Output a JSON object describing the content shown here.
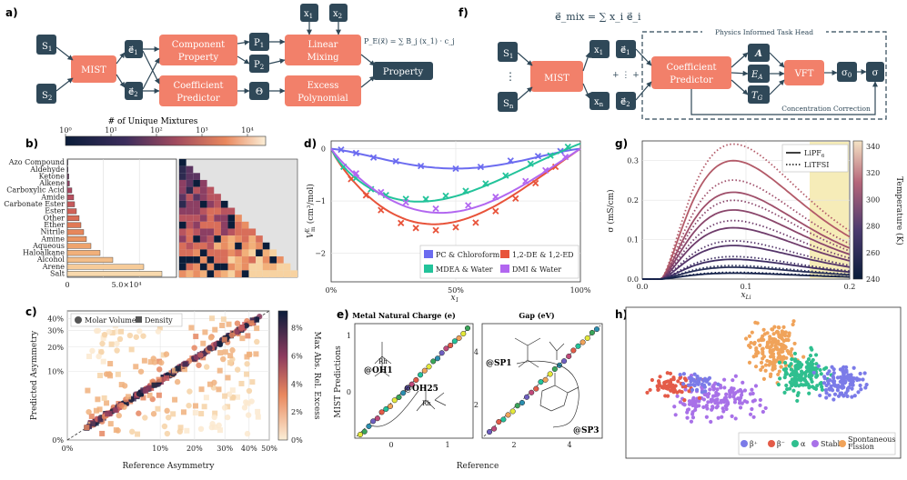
{
  "colors": {
    "navy": "#2f4858",
    "salmon": "#f2806a",
    "series_blue": "#6c6cf0",
    "series_red": "#e8533a",
    "series_green": "#22c39a",
    "series_purple": "#b267f0",
    "beta_plus": "#7b7be8",
    "beta_minus": "#e45b48",
    "alpha": "#2fbf8f",
    "stable": "#a871e8",
    "sf": "#f0a35a"
  },
  "panel_a": {
    "label": "a)",
    "s1": "S",
    "s1_sub": "1",
    "s2": "S",
    "s2_sub": "2",
    "mist": "MIST",
    "e1": "e⃗",
    "e1_sub": "1",
    "e2": "e⃗",
    "e2_sub": "2",
    "component_property": [
      "Component",
      "Property"
    ],
    "coefficient_predictor": [
      "Coefficient",
      "Predictor"
    ],
    "p1": "P",
    "p1_sub": "1",
    "p2": "P",
    "p2_sub": "2",
    "theta": "Θ",
    "x1": "x",
    "x1_sub": "1",
    "x2": "x",
    "x2_sub": "2",
    "linear_mixing": [
      "Linear",
      "Mixing"
    ],
    "excess_polynomial": [
      "Excess",
      "Polynomial"
    ],
    "formula": "P_E(x⃗) = ∑ B_j (x_1) · c_j",
    "property": "Property"
  },
  "panel_b": {
    "label": "b)",
    "colorbar_title": "# of Unique Mixtures",
    "colorbar_ticks": [
      "10⁰",
      "10¹",
      "10²",
      "10³",
      "10⁴"
    ],
    "x_tick_0": "0",
    "x_tick_1": "5.0×10⁴",
    "categories": [
      "Azo Compound",
      "Aldehyde",
      "Ketone",
      "Alkene",
      "Carboxylic Acid",
      "Amide",
      "Carbonate Ester",
      "Ester",
      "Other",
      "Ether",
      "Nitrile",
      "Amine",
      "Aqueous",
      "Haloalkane",
      "Alcohol",
      "Arene",
      "Salt"
    ],
    "counts": [
      300,
      400,
      800,
      1200,
      2500,
      3500,
      4000,
      5000,
      6500,
      7500,
      9000,
      10500,
      13000,
      18000,
      25000,
      42000,
      52000
    ],
    "x_max": 60000
  },
  "panel_c": {
    "label": "c)",
    "xlabel": "Reference Asymmetry",
    "ylabel": "Predicted Asymmetry",
    "x_ticks": [
      "0%",
      "10%",
      "20%",
      "30%",
      "40%",
      "50%"
    ],
    "y_ticks": [
      "0%",
      "10%",
      "20%",
      "30%",
      "40%"
    ],
    "legend_molar": "Molar Volume",
    "legend_density": "Density",
    "colorbar_label": "Max Abs. Rel. Excess",
    "colorbar_ticks": [
      "0%",
      "2%",
      "4%",
      "6%",
      "8%"
    ]
  },
  "panel_d": {
    "label": "d)",
    "xlabel": "x",
    "xlabel_sub": "1",
    "ylabel": "V",
    "ylabel_sup": "E",
    "ylabel_sub": "m",
    "ylabel_unit": "(cm³/mol)",
    "x_ticks": [
      "0%",
      "50%",
      "100%"
    ],
    "y_ticks": [
      "0",
      "−1",
      "−2"
    ],
    "legend": [
      "PC & Chloroform",
      "1,2-DE & 1,2-ED",
      "MDEA & Water",
      "DMI & Water"
    ]
  },
  "panel_e": {
    "label": "e)",
    "title_left": "Metal Natural Charge (e)",
    "title_right": "Gap (eV)",
    "ylabel": "MIST Predictions",
    "xlabel": "Reference",
    "left_ticks_x": [
      "0",
      "1"
    ],
    "left_ticks_y": [
      "0",
      "1"
    ],
    "right_ticks_x": [
      "2",
      "4"
    ],
    "right_ticks_y": [
      "2",
      "4"
    ],
    "ann_oh1": "@OH1",
    "ann_oh25": "@OH25",
    "ann_sp1": "@SP1",
    "ann_sp3": "@SP3",
    "rh": "Rh"
  },
  "panel_f": {
    "label": "f)",
    "formula": "e⃗_mix = ∑ x_i e⃗_i",
    "s1": "S",
    "s1_sub": "1",
    "sn": "S",
    "sn_sub": "n",
    "dots": "⋮",
    "mist": "MIST",
    "x1": "x",
    "x1_sub": "1",
    "xn": "x",
    "xn_sub": "n",
    "e1": "e⃗",
    "e1_sub": "1",
    "e2": "e⃗",
    "e2_sub": "2",
    "head_title": "Physics Informed Task Head",
    "coefficient_predictor": [
      "Coefficient",
      "Predictor"
    ],
    "a": "A",
    "ea": "E",
    "ea_sub": "A",
    "tg": "T",
    "tg_sub": "G",
    "vft": "VFT",
    "sigma0": "σ",
    "sigma0_sub": "0",
    "sigma": "σ",
    "concentration_correction": "Concentration Correction"
  },
  "panel_g": {
    "label": "g)",
    "xlabel": "x",
    "xlabel_sub": "Li",
    "ylabel": "σ (mS/cm)",
    "x_ticks": [
      "0.0",
      "0.1",
      "0.2"
    ],
    "y_ticks": [
      "0.0",
      "0.1",
      "0.2",
      "0.3"
    ],
    "legend_solid": "LiPF",
    "legend_solid_sub": "6",
    "legend_dotted": "LiTFSI",
    "colorbar_label": "Temperature (K)",
    "colorbar_ticks": [
      "240",
      "260",
      "280",
      "300",
      "320",
      "340"
    ]
  },
  "panel_h": {
    "label": "h)",
    "legend": [
      "β⁺",
      "β⁻",
      "α",
      "Stable",
      "Spontaneous Fission"
    ]
  }
}
